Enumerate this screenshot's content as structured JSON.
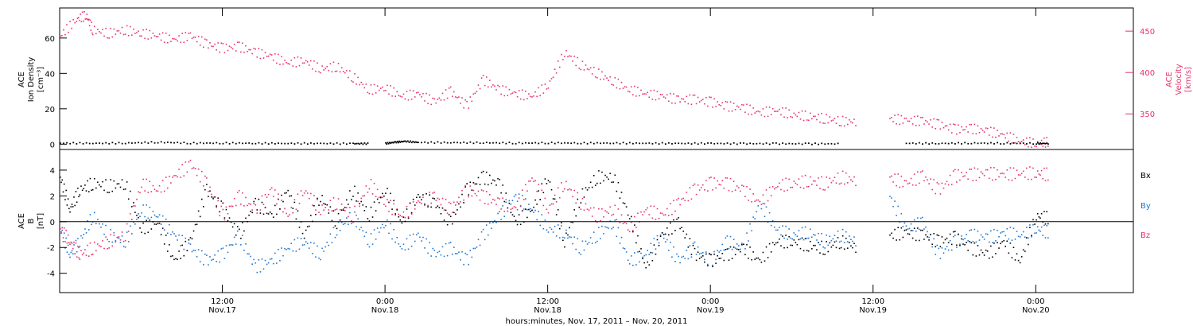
{
  "colors": {
    "density": "#000000",
    "velocity": "#e8336a",
    "bx": "#000000",
    "by": "#1f77d2",
    "bz": "#e8336a",
    "axis": "#000000"
  },
  "chart_data": [
    {
      "type": "scatter",
      "panel": "plasma",
      "ylabel": [
        "ACE",
        "Ion Density",
        "[cm⁻³]"
      ],
      "y2label": [
        "ACE",
        "Velocity",
        "[km/s]"
      ],
      "ylim": [
        -3,
        77
      ],
      "y2lim": [
        307,
        478
      ],
      "yticks": [
        0,
        20,
        40,
        60
      ],
      "y2ticks": [
        350,
        400,
        450
      ],
      "series": [
        {
          "name": "Ion Density",
          "axis": "left",
          "color": "#000000",
          "x": [
            0.0,
            0.1,
            0.2,
            0.3,
            0.4,
            0.5,
            0.6,
            0.7,
            0.8,
            0.9,
            0.95,
            0.975,
            1.0,
            1.03,
            1.06,
            1.1,
            1.2,
            1.3,
            1.4,
            1.5,
            1.6,
            1.7,
            1.8,
            1.9,
            2.0,
            2.1,
            2.2,
            2.3,
            2.4,
            2.48,
            2.6,
            2.7,
            2.8,
            2.9,
            3.0,
            3.04
          ],
          "y": [
            1.0,
            0.9,
            1.0,
            1.5,
            1.0,
            1.0,
            0.9,
            0.8,
            0.8,
            0.7,
            0.7,
            null,
            0.8,
            1.5,
            2.0,
            1.4,
            1.3,
            1.2,
            1.0,
            1.1,
            1.0,
            1.0,
            0.9,
            0.8,
            0.8,
            0.7,
            0.7,
            0.6,
            0.6,
            null,
            0.9,
            0.8,
            1.0,
            0.9,
            0.8,
            0.8
          ]
        },
        {
          "name": "Velocity",
          "axis": "right",
          "color": "#e8336a",
          "x": [
            0.0,
            0.05,
            0.08,
            0.1,
            0.15,
            0.2,
            0.25,
            0.3,
            0.35,
            0.4,
            0.45,
            0.5,
            0.55,
            0.6,
            0.65,
            0.7,
            0.75,
            0.8,
            0.85,
            0.9,
            0.95,
            1.0,
            1.05,
            1.1,
            1.15,
            1.2,
            1.25,
            1.3,
            1.35,
            1.4,
            1.45,
            1.5,
            1.55,
            1.6,
            1.65,
            1.7,
            1.75,
            1.8,
            1.85,
            1.9,
            1.95,
            2.0,
            2.05,
            2.1,
            2.15,
            2.2,
            2.25,
            2.3,
            2.35,
            2.4,
            2.45,
            2.48,
            2.55,
            2.6,
            2.65,
            2.7,
            2.75,
            2.8,
            2.85,
            2.9,
            2.95,
            3.0,
            3.04
          ],
          "y": [
            445,
            465,
            470,
            452,
            448,
            452,
            448,
            445,
            440,
            445,
            435,
            430,
            432,
            425,
            420,
            412,
            415,
            405,
            408,
            395,
            380,
            382,
            372,
            375,
            365,
            378,
            360,
            392,
            380,
            375,
            372,
            385,
            425,
            410,
            400,
            390,
            380,
            375,
            372,
            368,
            368,
            365,
            360,
            358,
            352,
            355,
            350,
            348,
            345,
            342,
            341,
            null,
            345,
            343,
            342,
            338,
            332,
            333,
            330,
            325,
            318,
            315,
            317
          ]
        }
      ]
    },
    {
      "type": "scatter",
      "panel": "magnetic",
      "ylabel": [
        "ACE",
        "B",
        "[nT]"
      ],
      "ylim": [
        -5.5,
        5.6
      ],
      "yticks": [
        -4,
        -2,
        0,
        2,
        4
      ],
      "x_tick_labels": [
        {
          "x": 0.5,
          "label": [
            "12:00",
            "Nov.17"
          ]
        },
        {
          "x": 1.0,
          "label": [
            "0:00",
            "Nov.18"
          ]
        },
        {
          "x": 1.5,
          "label": [
            "12:00",
            "Nov.18"
          ]
        },
        {
          "x": 2.0,
          "label": [
            "0:00",
            "Nov.19"
          ]
        },
        {
          "x": 2.5,
          "label": [
            "12:00",
            "Nov.19"
          ]
        },
        {
          "x": 3.0,
          "label": [
            "0:00",
            "Nov.20"
          ]
        }
      ],
      "xlabel": "hours:minutes, Nov. 17, 2011 – Nov. 20, 2011",
      "xlim": [
        0.0,
        3.3
      ],
      "legend": [
        "Bx",
        "By",
        "Bz"
      ],
      "series": [
        {
          "name": "Bx",
          "color": "#000000",
          "x": [
            0.0,
            0.03,
            0.06,
            0.1,
            0.15,
            0.2,
            0.25,
            0.3,
            0.35,
            0.4,
            0.45,
            0.5,
            0.55,
            0.6,
            0.65,
            0.7,
            0.75,
            0.8,
            0.85,
            0.9,
            0.95,
            1.0,
            1.05,
            1.1,
            1.15,
            1.2,
            1.25,
            1.3,
            1.35,
            1.4,
            1.45,
            1.5,
            1.55,
            1.6,
            1.65,
            1.7,
            1.75,
            1.8,
            1.85,
            1.9,
            1.95,
            2.0,
            2.05,
            2.1,
            2.15,
            2.2,
            2.25,
            2.3,
            2.35,
            2.4,
            2.45,
            2.48,
            2.55,
            2.6,
            2.65,
            2.7,
            2.75,
            2.8,
            2.85,
            2.9,
            2.95,
            3.0,
            3.04
          ],
          "y": [
            3.5,
            1.0,
            2.5,
            3.0,
            2.8,
            3.0,
            -0.5,
            0.0,
            -3.0,
            -1.5,
            2.5,
            1.0,
            -1.0,
            1.5,
            0.5,
            2.5,
            -1.0,
            2.0,
            0.0,
            2.5,
            0.5,
            2.5,
            0.0,
            2.0,
            1.5,
            0.0,
            2.5,
            3.5,
            3.0,
            0.0,
            1.0,
            3.5,
            -1.5,
            2.0,
            3.5,
            3.5,
            0.5,
            -3.5,
            -1.0,
            0.0,
            -2.5,
            -3.0,
            -2.5,
            -2.0,
            -3.0,
            -1.5,
            -1.5,
            -1.8,
            -2.0,
            -1.5,
            -2.0,
            null,
            -1.0,
            -0.8,
            -1.0,
            -1.5,
            -1.2,
            -2.0,
            -2.5,
            -1.5,
            -3.0,
            0.5,
            0.3
          ]
        },
        {
          "name": "By",
          "color": "#1f77d2",
          "x": [
            0.0,
            0.03,
            0.06,
            0.1,
            0.15,
            0.2,
            0.25,
            0.3,
            0.35,
            0.4,
            0.45,
            0.5,
            0.55,
            0.6,
            0.65,
            0.7,
            0.75,
            0.8,
            0.85,
            0.9,
            0.95,
            1.0,
            1.05,
            1.1,
            1.15,
            1.2,
            1.25,
            1.3,
            1.35,
            1.4,
            1.45,
            1.5,
            1.55,
            1.6,
            1.65,
            1.7,
            1.75,
            1.8,
            1.85,
            1.9,
            1.95,
            2.0,
            2.05,
            2.1,
            2.15,
            2.2,
            2.25,
            2.3,
            2.35,
            2.4,
            2.45,
            2.48,
            2.55,
            2.6,
            2.65,
            2.7,
            2.75,
            2.8,
            2.85,
            2.9,
            2.95,
            3.0,
            3.04
          ],
          "y": [
            -0.5,
            -2.5,
            -1.5,
            0.5,
            -1.0,
            -1.5,
            1.0,
            0.5,
            -1.0,
            -2.0,
            -3.0,
            -2.5,
            -1.0,
            -3.5,
            -3.0,
            -2.0,
            -1.5,
            -2.5,
            -0.5,
            0.5,
            -1.5,
            0.0,
            -2.0,
            -1.0,
            -2.5,
            -2.0,
            -3.0,
            -1.0,
            0.5,
            2.0,
            1.0,
            -0.5,
            -0.8,
            -2.0,
            -1.0,
            0.0,
            -3.0,
            -2.5,
            -1.0,
            -3.0,
            -2.0,
            -3.0,
            -1.5,
            -2.0,
            1.5,
            -0.5,
            -1.0,
            -0.8,
            -1.5,
            -1.0,
            -1.5,
            null,
            2.0,
            -0.5,
            0.0,
            -2.5,
            -1.5,
            -1.0,
            -1.2,
            -0.8,
            -1.0,
            -0.5,
            -0.8
          ]
        },
        {
          "name": "Bz",
          "color": "#e8336a",
          "x": [
            0.0,
            0.03,
            0.06,
            0.1,
            0.15,
            0.2,
            0.25,
            0.3,
            0.35,
            0.4,
            0.45,
            0.5,
            0.55,
            0.6,
            0.65,
            0.7,
            0.75,
            0.8,
            0.85,
            0.9,
            0.95,
            1.0,
            1.05,
            1.1,
            1.15,
            1.2,
            1.25,
            1.3,
            1.35,
            1.4,
            1.45,
            1.5,
            1.55,
            1.6,
            1.65,
            1.7,
            1.75,
            1.8,
            1.85,
            1.9,
            1.95,
            2.0,
            2.05,
            2.1,
            2.15,
            2.2,
            2.25,
            2.3,
            2.35,
            2.4,
            2.45,
            2.48,
            2.55,
            2.6,
            2.65,
            2.7,
            2.75,
            2.8,
            2.85,
            2.9,
            2.95,
            3.0,
            3.04
          ],
          "y": [
            -0.5,
            -1.5,
            -2.5,
            -2.0,
            -1.5,
            -1.0,
            3.0,
            2.5,
            3.5,
            4.5,
            3.0,
            0.5,
            2.0,
            1.0,
            2.5,
            0.5,
            2.5,
            1.0,
            1.5,
            0.5,
            3.0,
            1.5,
            0.5,
            1.5,
            2.0,
            1.0,
            2.5,
            2.0,
            1.5,
            1.0,
            3.5,
            1.0,
            3.0,
            1.5,
            0.5,
            1.0,
            -0.5,
            1.0,
            0.5,
            1.5,
            2.5,
            3.0,
            3.0,
            2.5,
            1.5,
            2.8,
            3.0,
            3.2,
            3.0,
            3.5,
            3.2,
            null,
            3.5,
            3.0,
            3.6,
            2.5,
            3.6,
            3.7,
            3.8,
            3.7,
            3.8,
            3.8,
            3.7
          ]
        }
      ]
    }
  ]
}
